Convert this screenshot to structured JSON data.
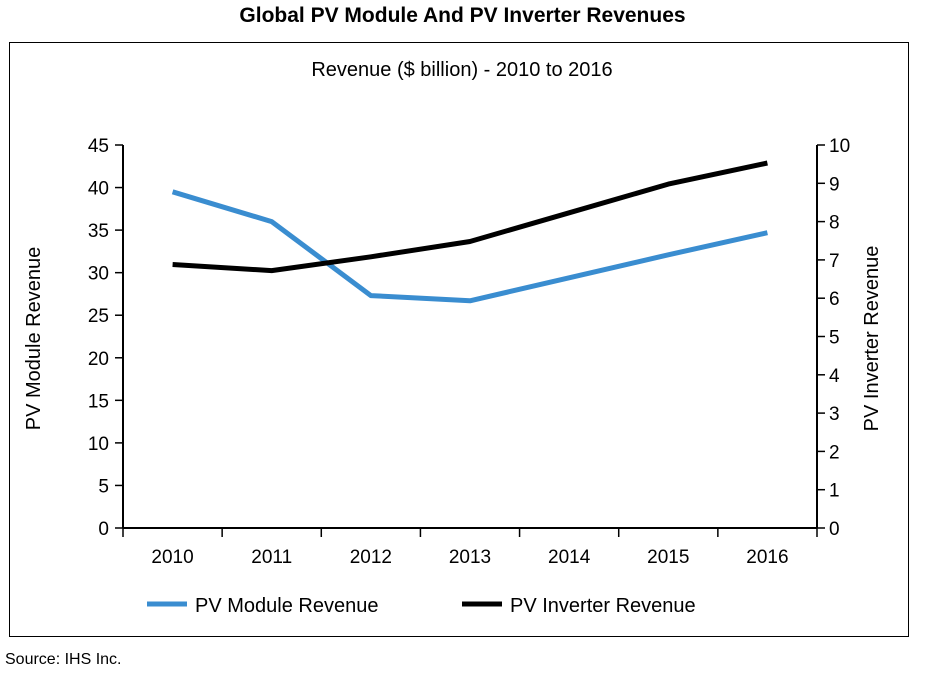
{
  "title": "Global PV Module And PV Inverter Revenues",
  "source": "Source: IHS Inc.",
  "chart_data": {
    "type": "line",
    "subtitle": "Revenue ($ billion) - 2010 to 2016",
    "categories": [
      "2010",
      "2011",
      "2012",
      "2013",
      "2014",
      "2015",
      "2016"
    ],
    "y_left": {
      "label": "PV Module Revenue",
      "min": 0,
      "max": 45,
      "step": 5
    },
    "y_right": {
      "label": "PV Inverter Revenue",
      "min": 0,
      "max": 10,
      "step": 1
    },
    "series": [
      {
        "name": "PV Module Revenue",
        "axis": "left",
        "color": "#3a8dd0",
        "values": [
          39.5,
          36.0,
          27.3,
          26.7,
          29.4,
          32.1,
          34.7
        ]
      },
      {
        "name": "PV Inverter Revenue",
        "axis": "right",
        "color": "#000000",
        "values": [
          6.88,
          6.72,
          7.08,
          7.48,
          8.23,
          8.98,
          9.53
        ]
      }
    ],
    "legend_position": "bottom",
    "grid": false
  }
}
